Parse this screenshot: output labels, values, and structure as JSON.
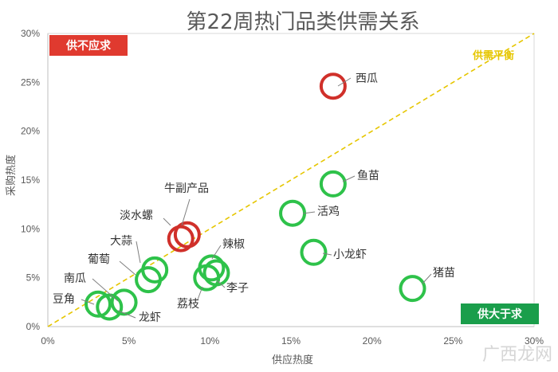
{
  "chart_data": {
    "type": "scatter",
    "title": "第22周热门品类供需关系",
    "xlabel": "供应热度",
    "ylabel": "采购热度",
    "xlim": [
      0,
      0.3
    ],
    "ylim": [
      0,
      0.3
    ],
    "x_ticks": [
      "0%",
      "5%",
      "10%",
      "15%",
      "20%",
      "25%",
      "30%"
    ],
    "y_ticks": [
      "0%",
      "5%",
      "10%",
      "15%",
      "20%",
      "25%",
      "30%"
    ],
    "reference_line": {
      "label": "供需平衡",
      "from": [
        0,
        0
      ],
      "to": [
        0.3,
        0.3
      ],
      "color": "#e6c600"
    },
    "quadrant_labels": {
      "top_left": {
        "text": "供不应求",
        "color": "#e03a2f"
      },
      "bottom_right": {
        "text": "供大于求",
        "color": "#1a9e4b"
      }
    },
    "colors": {
      "over_demand": "#d0302a",
      "over_supply": "#2ec24a"
    },
    "points": [
      {
        "name": "西瓜",
        "x": 0.176,
        "y": 0.246,
        "group": "over_demand"
      },
      {
        "name": "牛副产品",
        "x": 0.086,
        "y": 0.094,
        "group": "over_demand"
      },
      {
        "name": "淡水螺",
        "x": 0.082,
        "y": 0.09,
        "group": "over_demand"
      },
      {
        "name": "鱼苗",
        "x": 0.176,
        "y": 0.146,
        "group": "over_supply"
      },
      {
        "name": "活鸡",
        "x": 0.151,
        "y": 0.116,
        "group": "over_supply"
      },
      {
        "name": "小龙虾",
        "x": 0.164,
        "y": 0.076,
        "group": "over_supply"
      },
      {
        "name": "猪苗",
        "x": 0.225,
        "y": 0.039,
        "group": "over_supply"
      },
      {
        "name": "辣椒",
        "x": 0.101,
        "y": 0.06,
        "group": "over_supply"
      },
      {
        "name": "李子",
        "x": 0.104,
        "y": 0.055,
        "group": "over_supply"
      },
      {
        "name": "荔枝",
        "x": 0.098,
        "y": 0.05,
        "group": "over_supply"
      },
      {
        "name": "大蒜",
        "x": 0.066,
        "y": 0.058,
        "group": "over_supply"
      },
      {
        "name": "葡萄",
        "x": 0.062,
        "y": 0.048,
        "group": "over_supply"
      },
      {
        "name": "南瓜",
        "x": 0.047,
        "y": 0.025,
        "group": "over_supply"
      },
      {
        "name": "豆角",
        "x": 0.031,
        "y": 0.023,
        "group": "over_supply"
      },
      {
        "name": "龙虾",
        "x": 0.038,
        "y": 0.02,
        "group": "over_supply"
      }
    ]
  },
  "watermark": "广西龙网"
}
